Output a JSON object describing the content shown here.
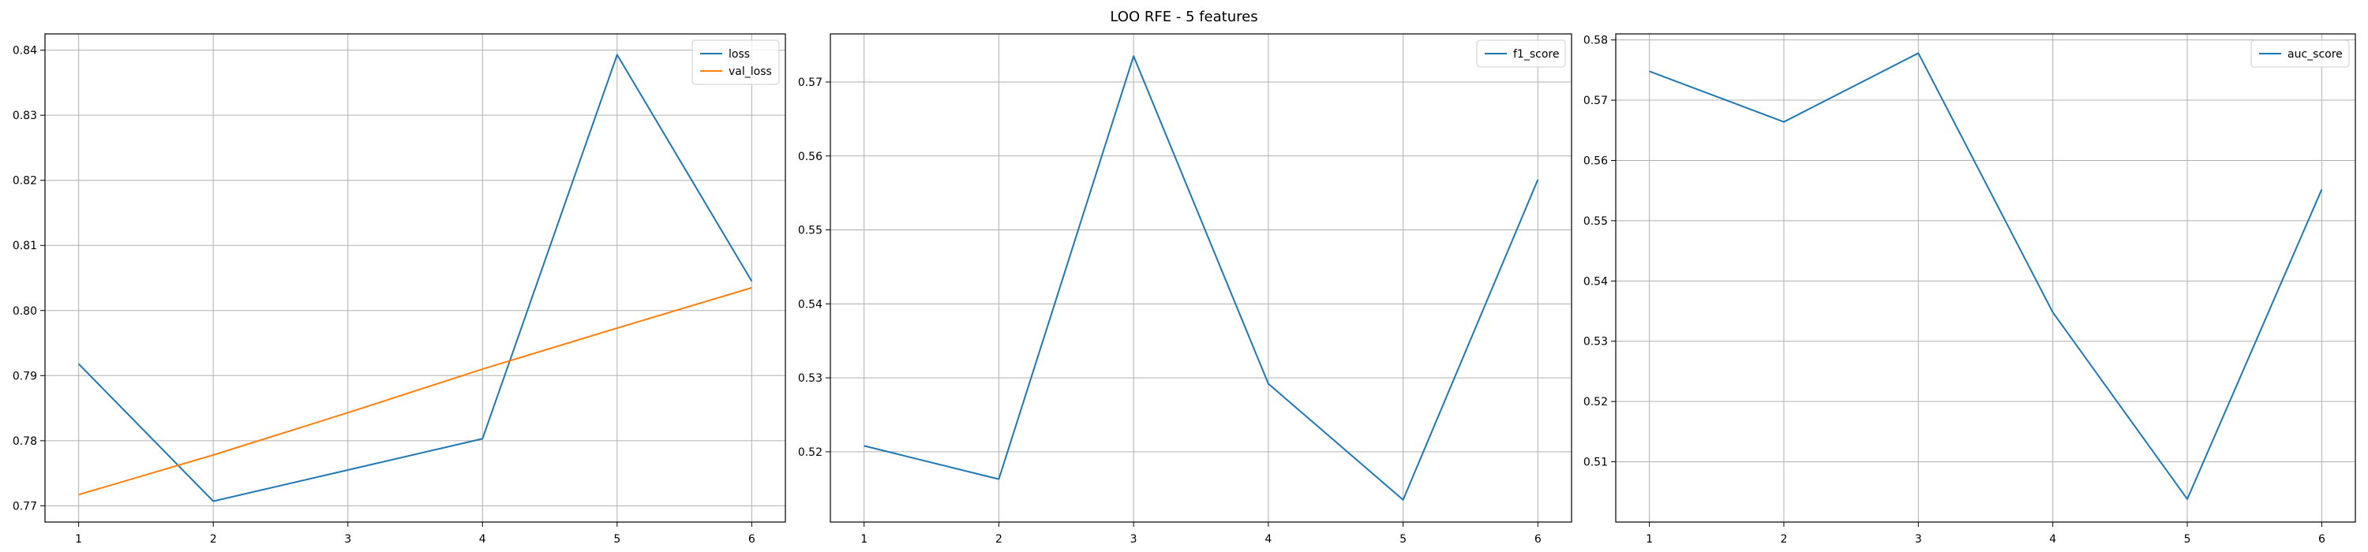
{
  "figure": {
    "title": "LOO RFE - 5 features"
  },
  "colors": {
    "blue": "#1f77b4",
    "orange": "#ff7f0e",
    "grid": "#b0b0b0",
    "axes": "#000000"
  },
  "chart_data": [
    {
      "type": "line",
      "title": "",
      "xlabel": "",
      "ylabel": "",
      "grid": true,
      "legend": "top-right",
      "x": [
        1,
        2,
        3,
        4,
        5,
        6
      ],
      "xlim": [
        0.75,
        6.25
      ],
      "ylim": [
        0.7675,
        0.8425
      ],
      "xticks": [
        1,
        2,
        3,
        4,
        5,
        6
      ],
      "yticks": [
        0.77,
        0.78,
        0.79,
        0.8,
        0.81,
        0.82,
        0.83,
        0.84
      ],
      "yticklabels": [
        "0.77",
        "0.78",
        "0.79",
        "0.80",
        "0.81",
        "0.82",
        "0.83",
        "0.84"
      ],
      "series": [
        {
          "name": "loss",
          "color": "#1f77b4",
          "values": [
            0.7918,
            0.7707,
            0.7755,
            0.7803,
            0.8393,
            0.8045
          ]
        },
        {
          "name": "val_loss",
          "color": "#ff7f0e",
          "values": [
            0.7717,
            0.7778,
            0.7843,
            0.791,
            0.7973,
            0.8035
          ]
        }
      ]
    },
    {
      "type": "line",
      "title": "",
      "xlabel": "",
      "ylabel": "",
      "grid": true,
      "legend": "top-right",
      "x": [
        1,
        2,
        3,
        4,
        5,
        6
      ],
      "xlim": [
        0.75,
        6.25
      ],
      "ylim": [
        0.5105,
        0.5765
      ],
      "xticks": [
        1,
        2,
        3,
        4,
        5,
        6
      ],
      "yticks": [
        0.52,
        0.53,
        0.54,
        0.55,
        0.56,
        0.57
      ],
      "yticklabels": [
        "0.52",
        "0.53",
        "0.54",
        "0.55",
        "0.56",
        "0.57"
      ],
      "series": [
        {
          "name": "f1_score",
          "color": "#1f77b4",
          "values": [
            0.5208,
            0.5163,
            0.5735,
            0.5292,
            0.5135,
            0.5568
          ]
        }
      ]
    },
    {
      "type": "line",
      "title": "",
      "xlabel": "",
      "ylabel": "",
      "grid": true,
      "legend": "top-right",
      "x": [
        1,
        2,
        3,
        4,
        5,
        6
      ],
      "xlim": [
        0.75,
        6.25
      ],
      "ylim": [
        0.5,
        0.581
      ],
      "xticks": [
        1,
        2,
        3,
        4,
        5,
        6
      ],
      "yticks": [
        0.51,
        0.52,
        0.53,
        0.54,
        0.55,
        0.56,
        0.57,
        0.58
      ],
      "yticklabels": [
        "0.51",
        "0.52",
        "0.53",
        "0.54",
        "0.55",
        "0.56",
        "0.57",
        "0.58"
      ],
      "series": [
        {
          "name": "auc_score",
          "color": "#1f77b4",
          "values": [
            0.5748,
            0.5664,
            0.5778,
            0.5348,
            0.5038,
            0.5552
          ]
        }
      ]
    }
  ]
}
